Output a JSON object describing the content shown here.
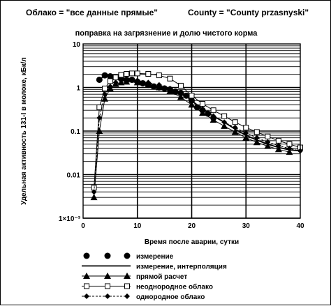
{
  "header": {
    "cloud_label": "Облако = \"все данные прямые\"",
    "county_label": "County = \"County przasnyski\""
  },
  "chart_data": {
    "type": "scatter",
    "title": "поправка на загрязнение и долю чистого корма",
    "xlabel": "Время после аварии, сутки",
    "ylabel": "Удельная активность 131-I в молоке, кБк/л",
    "xlim": [
      0,
      40
    ],
    "ylim": [
      0.001,
      10
    ],
    "yscale": "log",
    "grid": true,
    "legend_position": "bottom",
    "x_ticks": [
      {
        "value": 0,
        "label": "0"
      },
      {
        "value": 10,
        "label": "10"
      },
      {
        "value": 20,
        "label": "20"
      },
      {
        "value": 30,
        "label": "30"
      },
      {
        "value": 40,
        "label": "40"
      }
    ],
    "y_ticks": [
      {
        "value": 10,
        "label": "10"
      },
      {
        "value": 1,
        "label": "1"
      },
      {
        "value": 0.1,
        "label": "0.1"
      },
      {
        "value": 0.01,
        "label": "0.01"
      },
      {
        "value": 0.001,
        "label": "1×10⁻³"
      }
    ],
    "series": [
      {
        "name": "измерение",
        "style": "filled-circle",
        "x": [
          3,
          4,
          5,
          6,
          7,
          8,
          9,
          10,
          11,
          12,
          13,
          14,
          15,
          16,
          17,
          18,
          19,
          20,
          21,
          22,
          23,
          24
        ],
        "y": [
          1.5,
          1.9,
          1.8,
          1.7,
          1.6,
          1.5,
          1.5,
          1.35,
          1.25,
          1.15,
          1.05,
          1.0,
          0.95,
          0.9,
          0.8,
          0.75,
          0.65,
          0.5,
          0.35,
          0.3,
          0.25,
          0.2
        ]
      },
      {
        "name": "измерение, интерполяция",
        "style": "solid-line",
        "x": [
          3,
          4,
          5,
          6,
          7,
          8,
          9,
          10,
          12,
          14,
          16,
          18,
          20,
          22,
          24,
          26,
          28,
          30,
          32,
          34,
          36,
          38,
          40
        ],
        "y": [
          1.5,
          1.9,
          1.85,
          1.7,
          1.6,
          1.5,
          1.45,
          1.35,
          1.2,
          1.05,
          0.92,
          0.78,
          0.5,
          0.32,
          0.22,
          0.16,
          0.11,
          0.08,
          0.062,
          0.05,
          0.042,
          0.037,
          0.035
        ]
      },
      {
        "name": "прямой расчет",
        "style": "filled-triangle-line",
        "x": [
          2,
          3,
          4,
          5,
          6,
          7,
          8,
          10,
          12,
          14,
          16,
          18,
          20,
          22,
          24,
          26,
          28,
          30,
          32,
          34,
          36,
          38
        ],
        "y": [
          0.003,
          0.1,
          0.55,
          0.95,
          1.2,
          1.3,
          1.35,
          1.3,
          1.15,
          1.0,
          0.82,
          0.6,
          0.4,
          0.26,
          0.18,
          0.13,
          0.095,
          0.07,
          0.055,
          0.045,
          0.038,
          0.033
        ]
      },
      {
        "name": "неоднородное облако",
        "style": "open-square-line",
        "x": [
          2,
          3,
          4,
          5,
          6,
          7,
          8,
          9,
          10,
          12,
          14,
          16,
          18,
          20,
          22,
          24,
          26,
          28,
          30,
          32,
          34,
          36,
          38,
          40
        ],
        "y": [
          0.005,
          0.35,
          0.95,
          1.4,
          1.7,
          1.95,
          2.05,
          2.1,
          2.1,
          2.05,
          1.9,
          1.6,
          1.1,
          0.65,
          0.42,
          0.3,
          0.22,
          0.16,
          0.12,
          0.095,
          0.075,
          0.06,
          0.05,
          0.042
        ]
      },
      {
        "name": "однородное облако",
        "style": "filled-diamond-dashed",
        "x": [
          2,
          3,
          4,
          5,
          6,
          7,
          8,
          10,
          12,
          14,
          16,
          18,
          20,
          22,
          24,
          26,
          28,
          30,
          32,
          34,
          36,
          38,
          40
        ],
        "y": [
          0.004,
          0.2,
          0.7,
          1.05,
          1.3,
          1.45,
          1.5,
          1.45,
          1.3,
          1.15,
          0.95,
          0.7,
          0.48,
          0.32,
          0.22,
          0.16,
          0.12,
          0.09,
          0.07,
          0.056,
          0.046,
          0.04,
          0.035
        ]
      }
    ]
  }
}
